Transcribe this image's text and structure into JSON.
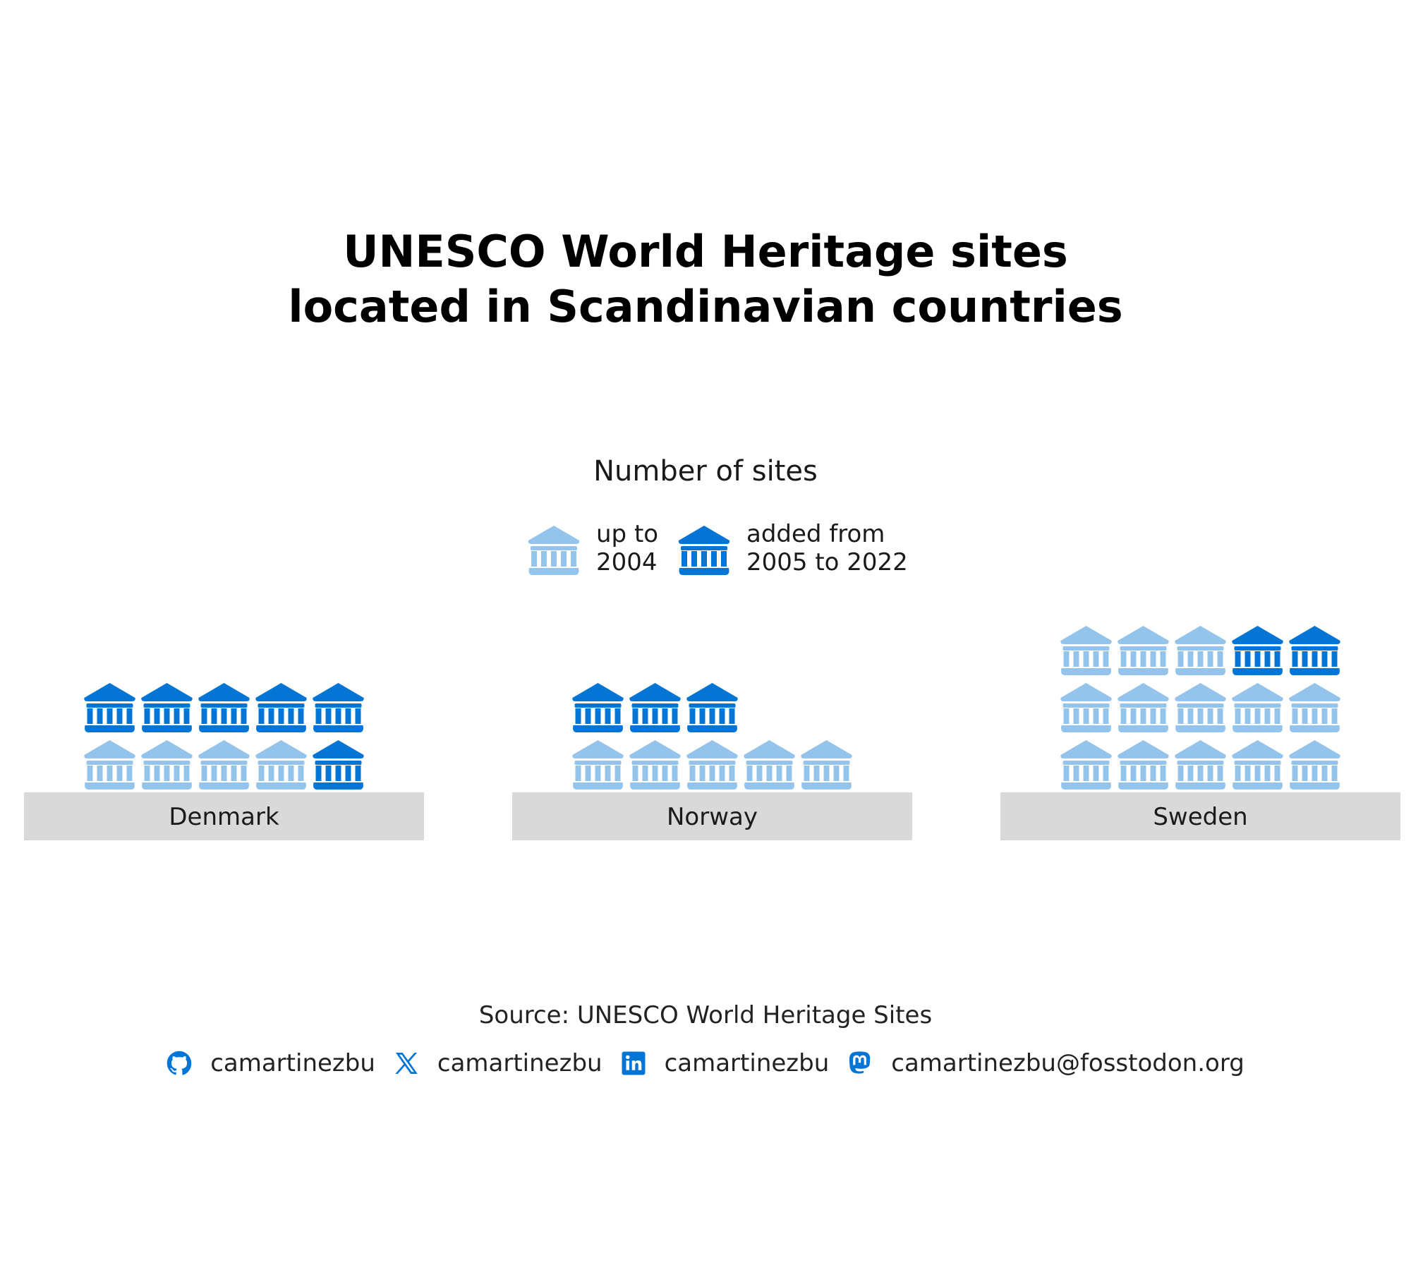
{
  "title_lines": [
    "UNESCO World Heritage sites",
    "located in Scandinavian countries"
  ],
  "legend": {
    "title": "Number of sites",
    "items": [
      {
        "line1": "up to",
        "line2": "2004",
        "color": "#94C4EC"
      },
      {
        "line1": "added from",
        "line2": "2005 to 2022",
        "color": "#0475D4"
      }
    ]
  },
  "chart_data": {
    "type": "pictogram",
    "unit": "site",
    "columns_per_row": 5,
    "categories": [
      "Denmark",
      "Norway",
      "Sweden"
    ],
    "series": [
      {
        "name": "up to 2004",
        "color": "#94C4EC",
        "values": [
          4,
          5,
          13
        ]
      },
      {
        "name": "added from 2005 to 2022",
        "color": "#0475D4",
        "values": [
          6,
          3,
          2
        ]
      }
    ]
  },
  "caption": "Source: UNESCO World Heritage Sites",
  "socials": [
    {
      "icon": "github-icon",
      "handle": "camartinezbu"
    },
    {
      "icon": "x-icon",
      "handle": "camartinezbu"
    },
    {
      "icon": "linkedin-icon",
      "handle": "camartinezbu"
    },
    {
      "icon": "mastodon-icon",
      "handle": "camartinezbu@fosstodon.org"
    }
  ],
  "colors": {
    "base": "#D9D9D9",
    "icon": "#0475D4"
  }
}
